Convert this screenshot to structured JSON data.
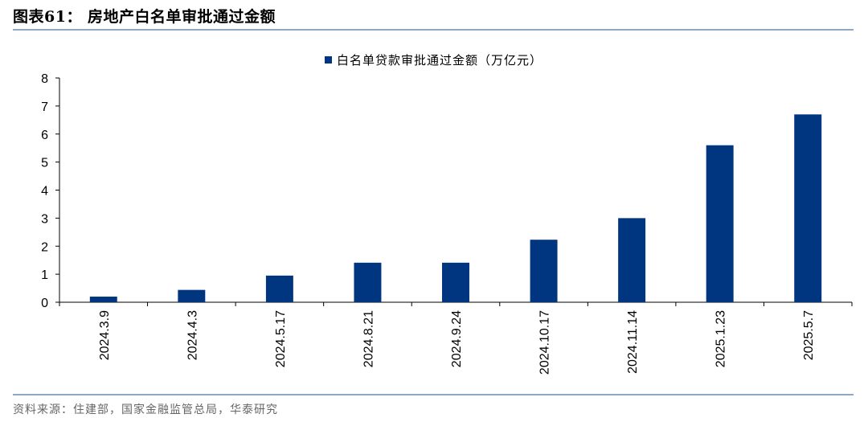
{
  "figure": {
    "title": "图表61：  房地产白名单审批通过金额",
    "source": "资料来源：住建部，国家金融监管总局，华泰研究"
  },
  "chart_data": {
    "type": "bar",
    "categories": [
      "2024.3.9",
      "2024.4.3",
      "2024.5.17",
      "2024.8.21",
      "2024.9.24",
      "2024.10.17",
      "2024.11.14",
      "2025.1.23",
      "2025.5.7"
    ],
    "series": [
      {
        "name": "白名单贷款审批通过金额（万亿元）",
        "values": [
          0.2,
          0.44,
          0.95,
          1.41,
          1.41,
          2.23,
          3.0,
          5.6,
          6.7
        ],
        "color": "#003580"
      }
    ],
    "ylim": [
      0,
      8
    ],
    "yticks": [
      "0",
      "1",
      "2",
      "3",
      "4",
      "5",
      "6",
      "7",
      "8"
    ],
    "legend_position": "top-center",
    "grid": false
  }
}
